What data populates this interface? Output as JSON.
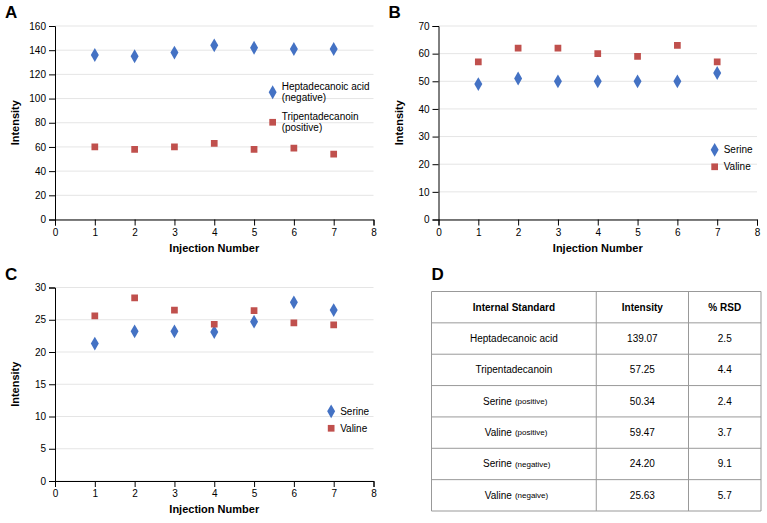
{
  "chart_data": [
    {
      "type": "scatter",
      "title": "A",
      "x": [
        1,
        2,
        3,
        4,
        5,
        6,
        7
      ],
      "series": [
        {
          "name": "Heptadecanoic acid\n(negative)",
          "color": "#4472c4",
          "marker": "diamond",
          "values": [
            136,
            135,
            138,
            144,
            142,
            141,
            141
          ]
        },
        {
          "name": "Tripentadecanoin\n(positive)",
          "color": "#c0504d",
          "marker": "square",
          "values": [
            60,
            58,
            60,
            63,
            58,
            59,
            54
          ]
        }
      ],
      "xlim": [
        0,
        8
      ],
      "xticks": [
        0,
        1,
        2,
        3,
        4,
        5,
        6,
        7,
        8
      ],
      "ylim": [
        0,
        160
      ],
      "yticks": [
        0,
        20,
        40,
        60,
        80,
        100,
        120,
        140,
        160
      ],
      "xlabel": "Injection Number",
      "ylabel": "Intensity",
      "grid": "y",
      "legend": "right"
    },
    {
      "type": "scatter",
      "title": "B",
      "x": [
        1,
        2,
        3,
        4,
        5,
        6,
        7
      ],
      "series": [
        {
          "name": "Serine",
          "color": "#4472c4",
          "marker": "diamond",
          "values": [
            49,
            51,
            50,
            50,
            50,
            50,
            53
          ]
        },
        {
          "name": "Valine",
          "color": "#c0504d",
          "marker": "square",
          "values": [
            57,
            62,
            62,
            60,
            59,
            63,
            57
          ]
        }
      ],
      "xlim": [
        0,
        8
      ],
      "xticks": [
        0,
        1,
        2,
        3,
        4,
        5,
        6,
        7,
        8
      ],
      "ylim": [
        0,
        70
      ],
      "yticks": [
        0,
        10,
        20,
        30,
        40,
        50,
        60,
        70
      ],
      "xlabel": "Injection Number",
      "ylabel": "Intensity",
      "grid": "y",
      "legend": "lower right"
    },
    {
      "type": "scatter",
      "title": "C",
      "x": [
        1,
        2,
        3,
        4,
        5,
        6,
        7
      ],
      "series": [
        {
          "name": "Serine",
          "color": "#4472c4",
          "marker": "diamond",
          "values": [
            21.3,
            23.2,
            23.2,
            23.1,
            24.7,
            27.7,
            26.5
          ]
        },
        {
          "name": "Valine",
          "color": "#c0504d",
          "marker": "square",
          "values": [
            25.6,
            28.4,
            26.5,
            24.3,
            26.4,
            24.5,
            24.2
          ]
        }
      ],
      "xlim": [
        0,
        8
      ],
      "xticks": [
        0,
        1,
        2,
        3,
        4,
        5,
        6,
        7,
        8
      ],
      "ylim": [
        0,
        30
      ],
      "yticks": [
        0,
        5,
        10,
        15,
        20,
        25,
        30
      ],
      "xlabel": "Injection Number",
      "ylabel": "Intensity",
      "grid": "y",
      "legend": "lower right"
    },
    {
      "type": "table",
      "title": "D",
      "headers": [
        "Internal Standard",
        "Intensity",
        "% RSD"
      ],
      "rows": [
        {
          "name": "Heptadecanoic acid",
          "values": [
            139.07,
            2.5
          ],
          "value_labels": [
            "139.07",
            "2.5"
          ]
        },
        {
          "name": "Tripentadecanoin",
          "values": [
            57.25,
            4.4
          ],
          "value_labels": [
            "57.25",
            "4.4"
          ]
        },
        {
          "name": "Serine",
          "sub": "(positive)",
          "values": [
            50.34,
            2.4
          ],
          "value_labels": [
            "50.34",
            "2.4"
          ]
        },
        {
          "name": "Valine",
          "sub": "(positive)",
          "values": [
            59.47,
            3.7
          ],
          "value_labels": [
            "59.47",
            "3.7"
          ]
        },
        {
          "name": "Serine",
          "sub": "(negative)",
          "values": [
            24.2,
            9.1
          ],
          "value_labels": [
            "24.20",
            "9.1"
          ]
        },
        {
          "name": "Valine",
          "sub": "(negaive)",
          "values": [
            25.63,
            5.7
          ],
          "value_labels": [
            "25.63",
            "5.7"
          ]
        }
      ]
    }
  ]
}
